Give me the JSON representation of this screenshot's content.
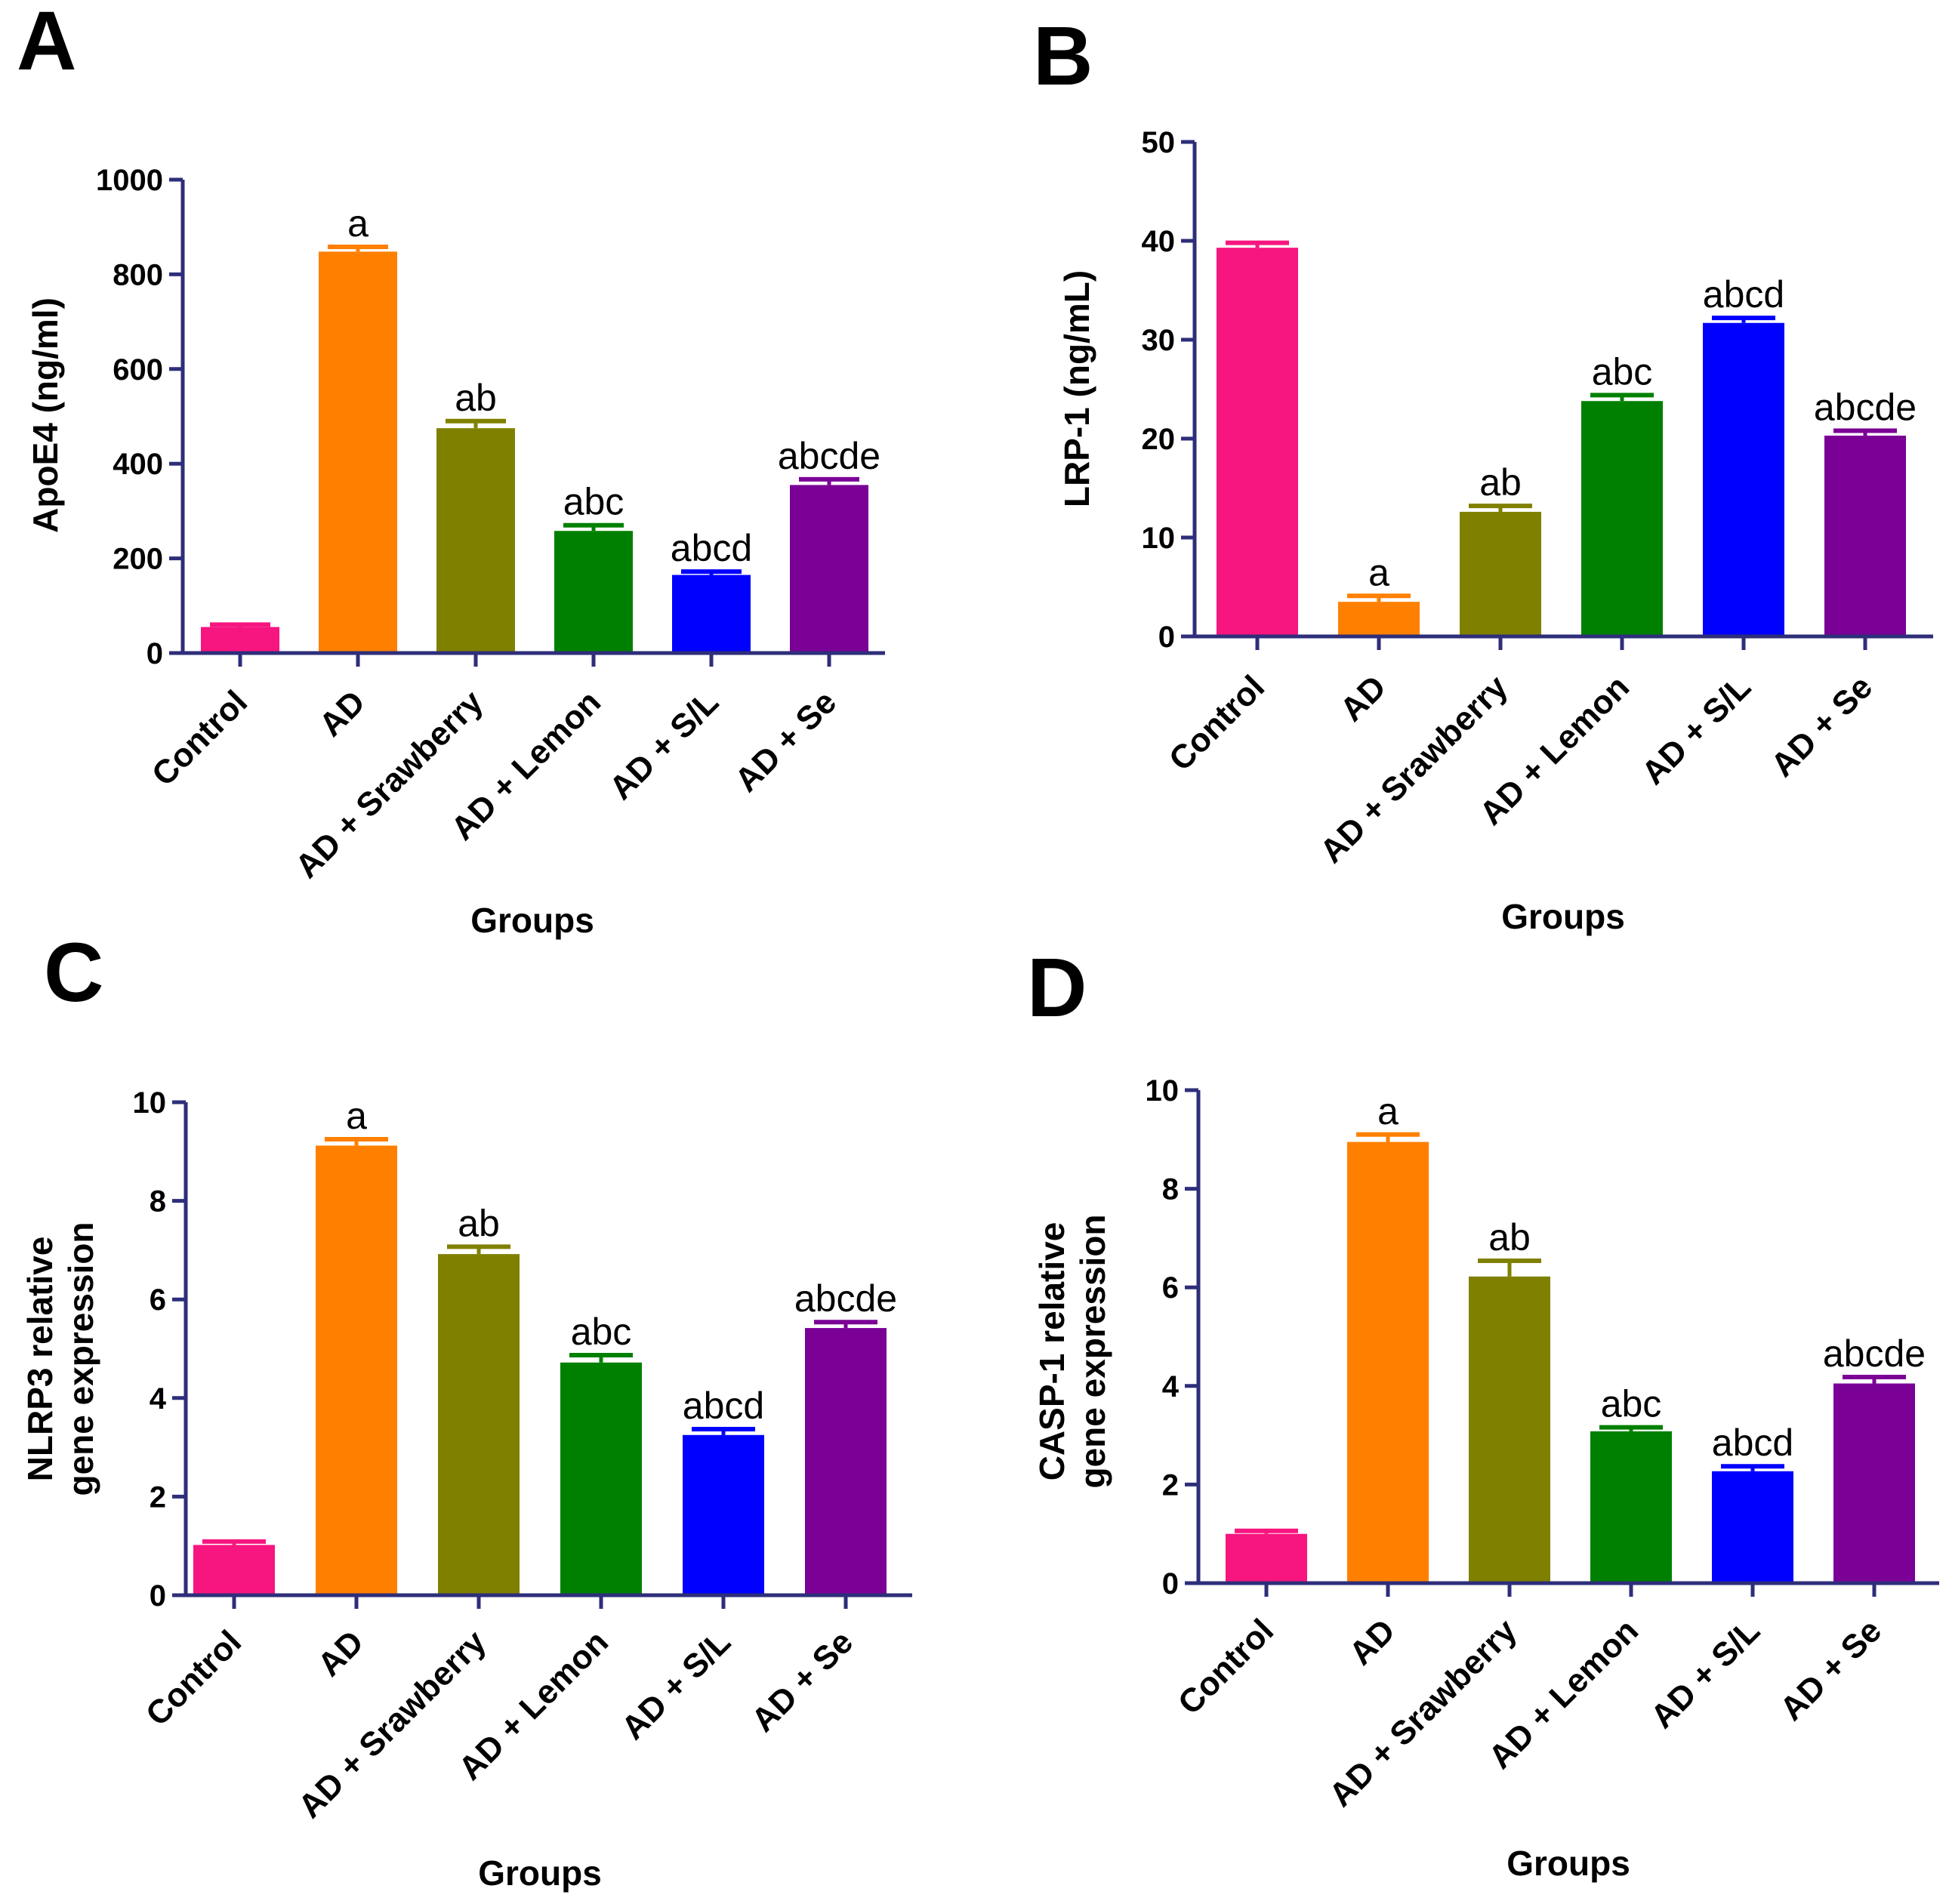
{
  "figure": {
    "colors": {
      "Control": "#f7157f",
      "AD": "#ff8000",
      "AD + Srawberry": "#808000",
      "AD + Lemon": "#008000",
      "AD + S/L": "#0000ff",
      "AD + Se": "#7a0096",
      "axis": "#2e2e7a"
    }
  },
  "chart_data": [
    {
      "panel": "A",
      "type": "bar",
      "title": "",
      "xlabel": "Groups",
      "ylabel": [
        "ApoE4 (ng/ml)"
      ],
      "categories": [
        "Control",
        "AD",
        "AD + Srawberry",
        "AD + Lemon",
        "AD + S/L",
        "AD + Se"
      ],
      "values": [
        55,
        848,
        475,
        258,
        165,
        355
      ],
      "errors": [
        5,
        10,
        15,
        12,
        7,
        12
      ],
      "annotations": [
        "",
        "a",
        "ab",
        "abc",
        "abcd",
        "abcde"
      ],
      "ylim": [
        0,
        1000
      ],
      "yticks": [
        0,
        200,
        400,
        600,
        800,
        1000
      ],
      "grid": false
    },
    {
      "panel": "B",
      "type": "bar",
      "title": "",
      "xlabel": "Groups",
      "ylabel": [
        "LRP-1 (ng/mL)"
      ],
      "categories": [
        "Control",
        "AD",
        "AD + Srawberry",
        "AD + Lemon",
        "AD + S/L",
        "AD + Se"
      ],
      "values": [
        39.3,
        3.5,
        12.6,
        23.8,
        31.7,
        20.3
      ],
      "errors": [
        0.5,
        0.6,
        0.6,
        0.6,
        0.5,
        0.5
      ],
      "annotations": [
        "",
        "a",
        "ab",
        "abc",
        "abcd",
        "abcde"
      ],
      "ylim": [
        0,
        50
      ],
      "yticks": [
        0,
        10,
        20,
        30,
        40,
        50
      ],
      "grid": false
    },
    {
      "panel": "C",
      "type": "bar",
      "title": "",
      "xlabel": "Groups",
      "ylabel": [
        "NLRP3 relative",
        "gene expression"
      ],
      "categories": [
        "Control",
        "AD",
        "AD + Srawberry",
        "AD + Lemon",
        "AD + S/L",
        "AD + Se"
      ],
      "values": [
        1.02,
        9.12,
        6.92,
        4.72,
        3.25,
        5.42
      ],
      "errors": [
        0.07,
        0.13,
        0.15,
        0.15,
        0.12,
        0.12
      ],
      "annotations": [
        "",
        "a",
        "ab",
        "abc",
        "abcd",
        "abcde"
      ],
      "ylim": [
        0,
        10
      ],
      "yticks": [
        0,
        2,
        4,
        6,
        8,
        10
      ],
      "grid": false
    },
    {
      "panel": "D",
      "type": "bar",
      "title": "",
      "xlabel": "Groups",
      "ylabel": [
        "CASP-1 relative",
        "gene expression"
      ],
      "categories": [
        "Control",
        "AD",
        "AD + Srawberry",
        "AD + Lemon",
        "AD + S/L",
        "AD + Se"
      ],
      "values": [
        1.0,
        8.95,
        6.22,
        3.08,
        2.27,
        4.05
      ],
      "errors": [
        0.06,
        0.15,
        0.32,
        0.08,
        0.1,
        0.13
      ],
      "annotations": [
        "",
        "a",
        "ab",
        "abc",
        "abcd",
        "abcde"
      ],
      "ylim": [
        0,
        10
      ],
      "yticks": [
        0,
        2,
        4,
        6,
        8,
        10
      ],
      "grid": false
    }
  ]
}
